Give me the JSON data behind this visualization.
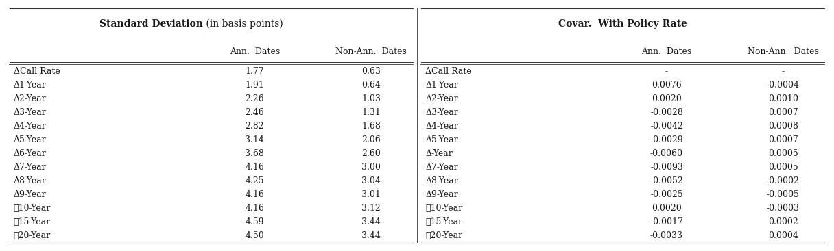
{
  "left_header_bold": "Standard Deviation",
  "left_header_normal": " (in basis points)",
  "right_header": "Covar.  With Policy Rate",
  "col_headers": [
    "Ann.  Dates",
    "Non-Ann.  Dates"
  ],
  "rows": [
    "ΔCall Rate",
    "Δ1-Year",
    "Δ2-Year",
    "Δ3-Year",
    "Δ4-Year",
    "Δ5-Year",
    "Δ6-Year",
    "Δ7-Year",
    "Δ8-Year",
    "Δ9-Year",
    "͉10-Year",
    "͉15-Year",
    "͉20-Year"
  ],
  "left_ann": [
    "1.77",
    "1.91",
    "2.26",
    "2.46",
    "2.82",
    "3.14",
    "3.68",
    "4.16",
    "4.25",
    "4.16",
    "4.16",
    "4.59",
    "4.50"
  ],
  "left_nonann": [
    "0.63",
    "0.64",
    "1.03",
    "1.31",
    "1.68",
    "2.06",
    "2.60",
    "3.00",
    "3.04",
    "3.01",
    "3.12",
    "3.44",
    "3.44"
  ],
  "right_rows": [
    "ΔCall Rate",
    "Δ1-Year",
    "Δ2-Year",
    "Δ3-Year",
    "Δ4-Year",
    "Δ5-Year",
    "Δ-Year",
    "Δ7-Year",
    "Δ8-Year",
    "Δ9-Year",
    "͉10-Year",
    "͉15-Year",
    "͉20-Year"
  ],
  "right_ann": [
    "-",
    "0.0076",
    "0.0020",
    "-0.0028",
    "-0.0042",
    "-0.0029",
    "-0.0060",
    "-0.0093",
    "-0.0052",
    "-0.0025",
    "0.0020",
    "-0.0017",
    "-0.0033"
  ],
  "right_nonann": [
    "-",
    "-0.0004",
    "0.0010",
    "0.0007",
    "0.0008",
    "0.0007",
    "0.0005",
    "0.0005",
    "-0.0002",
    "-0.0005",
    "-0.0003",
    "0.0002",
    "0.0004"
  ],
  "text_color": "#1a1a1a",
  "line_color": "#333333",
  "font_family": "serif"
}
